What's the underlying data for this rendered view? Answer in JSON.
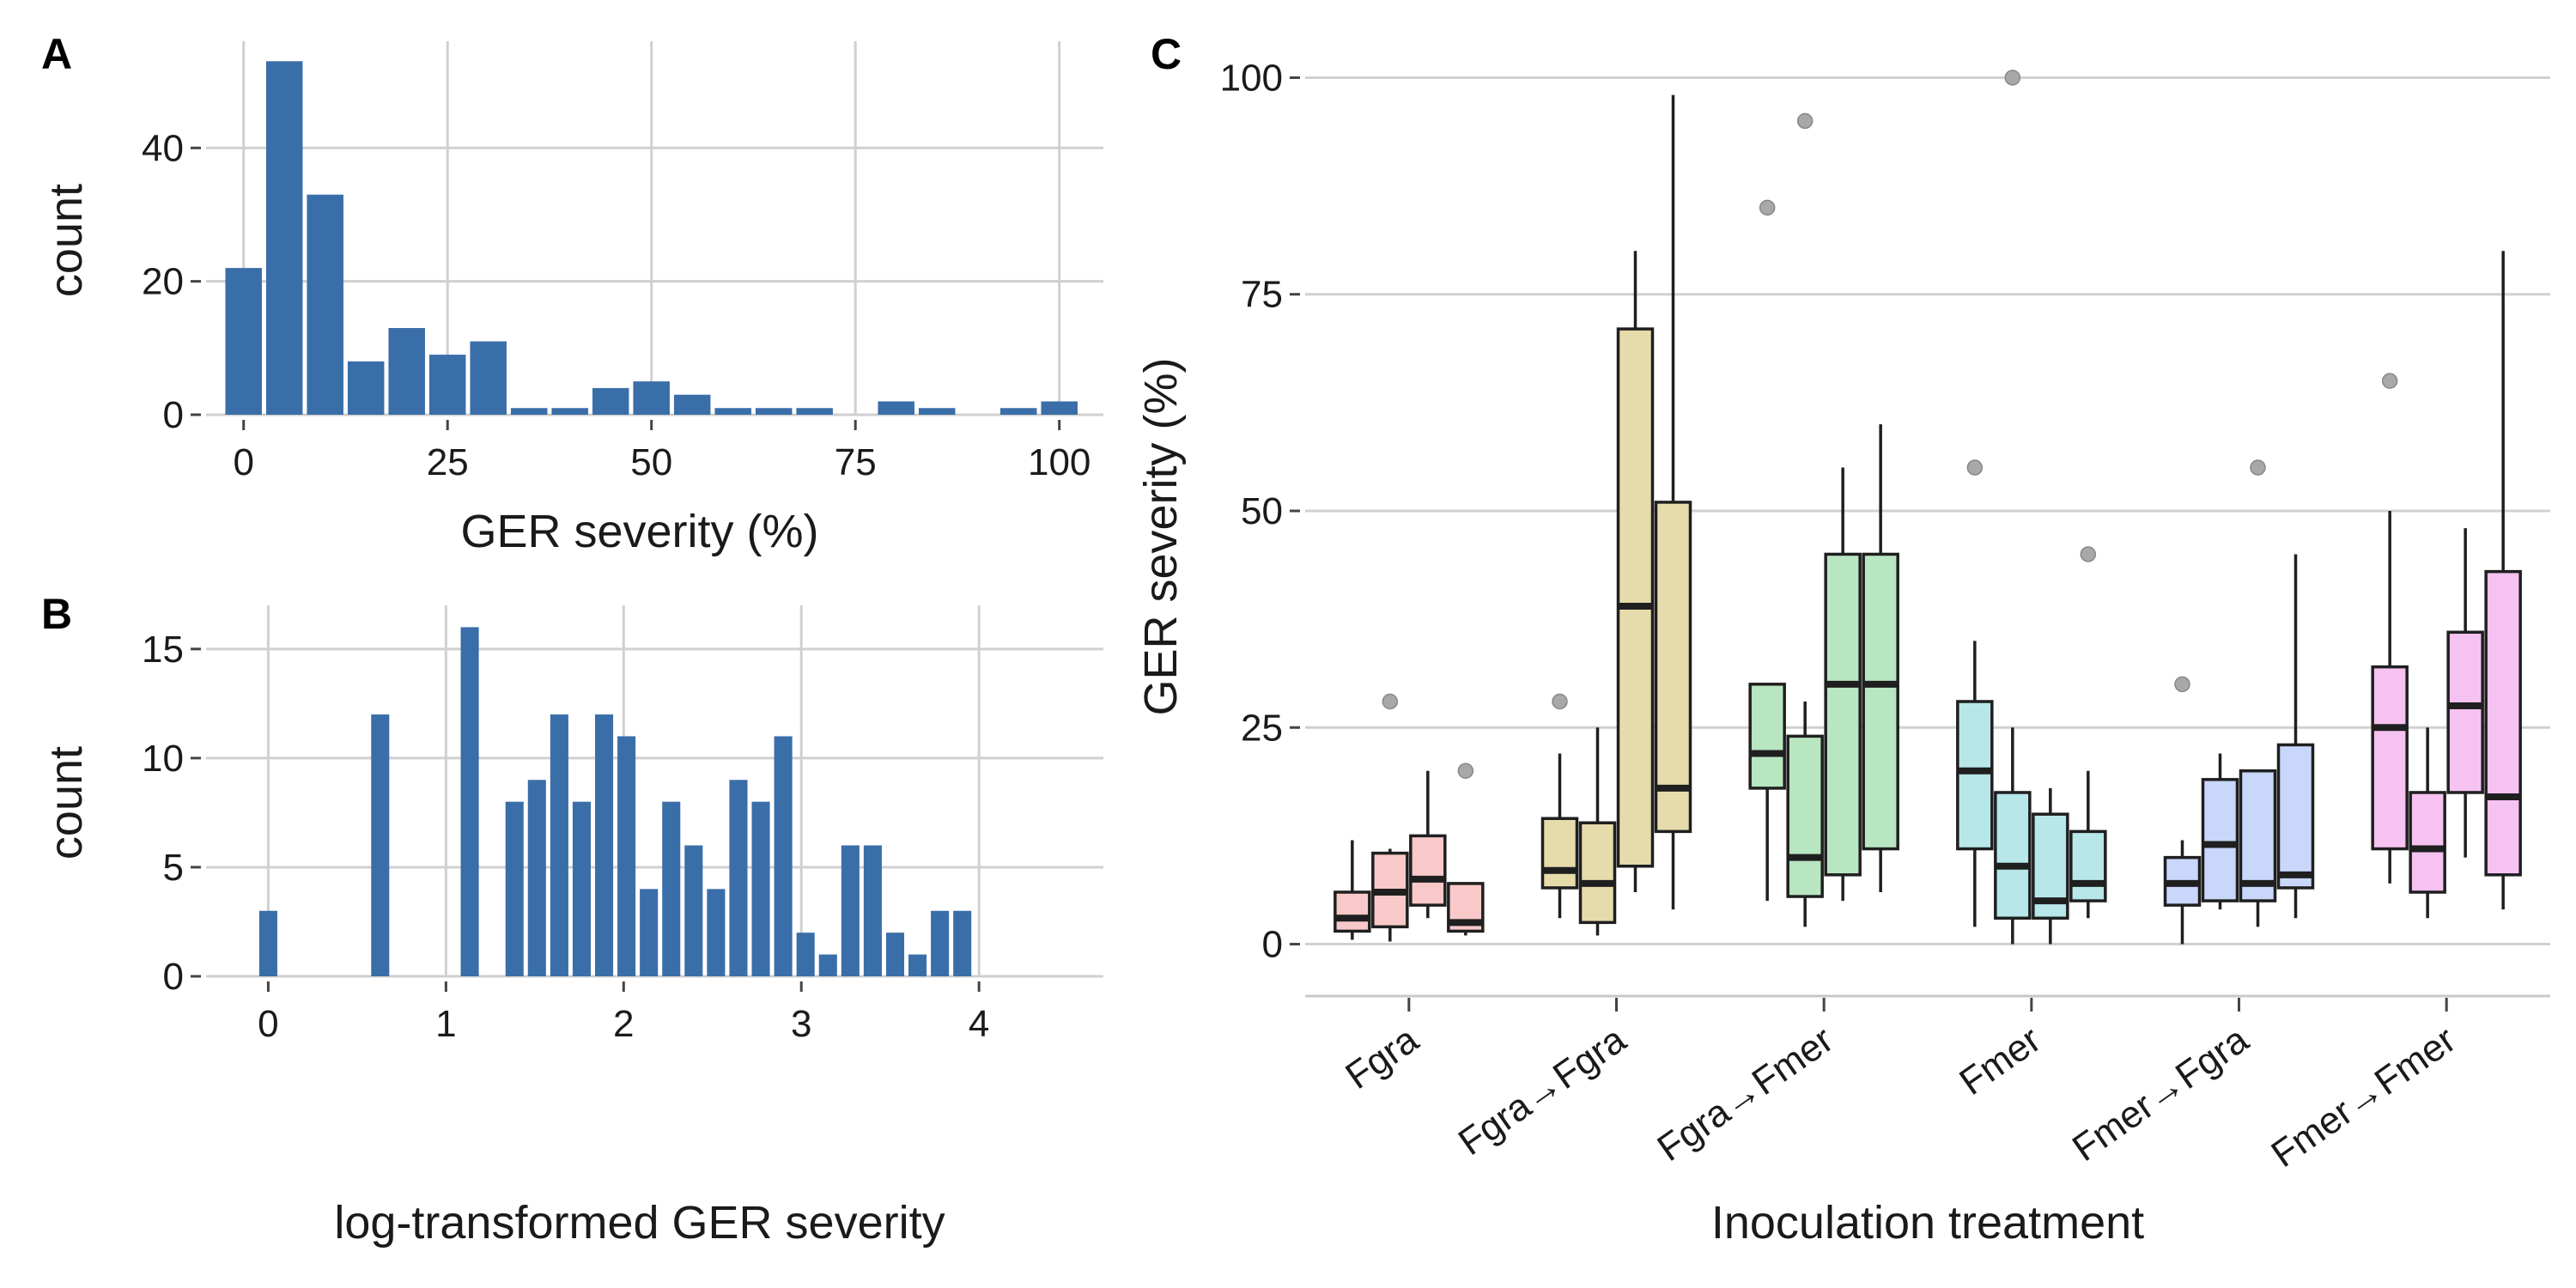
{
  "chart_data": [
    {
      "panel": "A",
      "type": "bar",
      "xlabel": "GER severity (%)",
      "ylabel": "count",
      "xlim": [
        -4.6,
        105.4
      ],
      "ylim": [
        0,
        56
      ],
      "xticks": [
        0,
        25,
        50,
        75,
        100
      ],
      "yticks": [
        0,
        20,
        40
      ],
      "grid": true,
      "bin_width": 5,
      "x": [
        0,
        5,
        10,
        15,
        20,
        25,
        30,
        35,
        40,
        45,
        50,
        55,
        60,
        65,
        70,
        75,
        80,
        85,
        90,
        95,
        100
      ],
      "values": [
        22,
        53,
        33,
        8,
        13,
        9,
        11,
        1,
        1,
        4,
        5,
        3,
        1,
        1,
        1,
        0,
        2,
        1,
        0,
        1,
        2
      ]
    },
    {
      "panel": "B",
      "type": "bar",
      "xlabel": "log-transformed GER severity",
      "ylabel": "count",
      "xlim": [
        -0.35,
        4.7
      ],
      "ylim": [
        0,
        17
      ],
      "xticks": [
        0,
        1,
        2,
        3,
        4
      ],
      "yticks": [
        0,
        5,
        10,
        15
      ],
      "grid": true,
      "bin_width": 0.126,
      "x": [
        0.0,
        0.126,
        0.252,
        0.378,
        0.504,
        0.63,
        0.756,
        0.882,
        1.008,
        1.134,
        1.26,
        1.386,
        1.512,
        1.638,
        1.764,
        1.89,
        2.016,
        2.142,
        2.268,
        2.394,
        2.52,
        2.646,
        2.772,
        2.898,
        3.024,
        3.15,
        3.276,
        3.402,
        3.528,
        3.654,
        3.78,
        3.906,
        4.032,
        4.158,
        4.284,
        4.41,
        4.536
      ],
      "values": [
        3,
        0,
        0,
        0,
        0,
        12,
        0,
        0,
        0,
        16,
        0,
        8,
        9,
        12,
        8,
        12,
        11,
        4,
        8,
        6,
        4,
        9,
        8,
        11,
        2,
        1,
        6,
        6,
        2,
        1,
        3,
        3,
        0,
        0,
        0,
        0,
        0
      ]
    },
    {
      "panel": "C",
      "type": "box",
      "xlabel": "Inoculation treatment",
      "ylabel": "GER severity (%)",
      "ylim": [
        -5,
        105
      ],
      "yticks": [
        0,
        25,
        50,
        75,
        100
      ],
      "grid": true,
      "categories": [
        "Fgra",
        "Fgra→Fgra",
        "Fgra→Fmer",
        "Fmer",
        "Fmer→Fgra",
        "Fmer→Fmer"
      ],
      "colors": [
        "#f9c9c9",
        "#e6dcab",
        "#b8e6c1",
        "#b7e7e8",
        "#c8d7fa",
        "#f6c2f1"
      ],
      "groups": [
        {
          "name": "Fgra",
          "boxes": [
            {
              "min": 0.5,
              "q1": 1.5,
              "median": 3,
              "q3": 6,
              "max": 12,
              "outliers": []
            },
            {
              "min": 0.3,
              "q1": 2,
              "median": 6,
              "q3": 10.5,
              "max": 11,
              "outliers": [
                28
              ]
            },
            {
              "min": 3,
              "q1": 4.5,
              "median": 7.5,
              "q3": 12.5,
              "max": 20,
              "outliers": []
            },
            {
              "min": 1,
              "q1": 1.5,
              "median": 2.5,
              "q3": 7,
              "max": 7,
              "outliers": [
                20
              ]
            }
          ]
        },
        {
          "name": "Fgra→Fgra",
          "boxes": [
            {
              "min": 3,
              "q1": 6.5,
              "median": 8.5,
              "q3": 14.5,
              "max": 22,
              "outliers": [
                28
              ]
            },
            {
              "min": 1,
              "q1": 2.5,
              "median": 7,
              "q3": 14,
              "max": 25,
              "outliers": []
            },
            {
              "min": 6,
              "q1": 9,
              "median": 39,
              "q3": 71,
              "max": 80,
              "outliers": []
            },
            {
              "min": 4,
              "q1": 13,
              "median": 18,
              "q3": 51,
              "max": 98,
              "outliers": []
            }
          ]
        },
        {
          "name": "Fgra→Fmer",
          "boxes": [
            {
              "min": 5,
              "q1": 18,
              "median": 22,
              "q3": 30,
              "max": 30,
              "outliers": [
                85
              ]
            },
            {
              "min": 2,
              "q1": 5.5,
              "median": 10,
              "q3": 24,
              "max": 28,
              "outliers": [
                95
              ]
            },
            {
              "min": 5,
              "q1": 8,
              "median": 30,
              "q3": 45,
              "max": 55,
              "outliers": []
            },
            {
              "min": 6,
              "q1": 11,
              "median": 30,
              "q3": 45,
              "max": 60,
              "outliers": []
            }
          ]
        },
        {
          "name": "Fmer",
          "boxes": [
            {
              "min": 2,
              "q1": 11,
              "median": 20,
              "q3": 28,
              "max": 35,
              "outliers": [
                55
              ]
            },
            {
              "min": 0,
              "q1": 3,
              "median": 9,
              "q3": 17.5,
              "max": 25,
              "outliers": [
                100
              ]
            },
            {
              "min": 0,
              "q1": 3,
              "median": 5,
              "q3": 15,
              "max": 18,
              "outliers": []
            },
            {
              "min": 3,
              "q1": 5,
              "median": 7,
              "q3": 13,
              "max": 20,
              "outliers": [
                45
              ]
            }
          ]
        },
        {
          "name": "Fmer→Fgra",
          "boxes": [
            {
              "min": 0,
              "q1": 4.5,
              "median": 7,
              "q3": 10,
              "max": 12,
              "outliers": [
                30
              ]
            },
            {
              "min": 4,
              "q1": 5,
              "median": 11.5,
              "q3": 19,
              "max": 22,
              "outliers": []
            },
            {
              "min": 2,
              "q1": 5,
              "median": 7,
              "q3": 20,
              "max": 20,
              "outliers": [
                55
              ]
            },
            {
              "min": 3,
              "q1": 6.5,
              "median": 8,
              "q3": 23,
              "max": 45,
              "outliers": []
            }
          ]
        },
        {
          "name": "Fmer→Fmer",
          "boxes": [
            {
              "min": 7,
              "q1": 11,
              "median": 25,
              "q3": 32,
              "max": 50,
              "outliers": [
                65
              ]
            },
            {
              "min": 3,
              "q1": 6,
              "median": 11,
              "q3": 17.5,
              "max": 25,
              "outliers": []
            },
            {
              "min": 10,
              "q1": 17.5,
              "median": 27.5,
              "q3": 36,
              "max": 48,
              "outliers": []
            },
            {
              "min": 4,
              "q1": 8,
              "median": 17,
              "q3": 43,
              "max": 80,
              "outliers": []
            }
          ]
        }
      ]
    }
  ],
  "panels": {
    "a": "A",
    "b": "B",
    "c": "C"
  }
}
